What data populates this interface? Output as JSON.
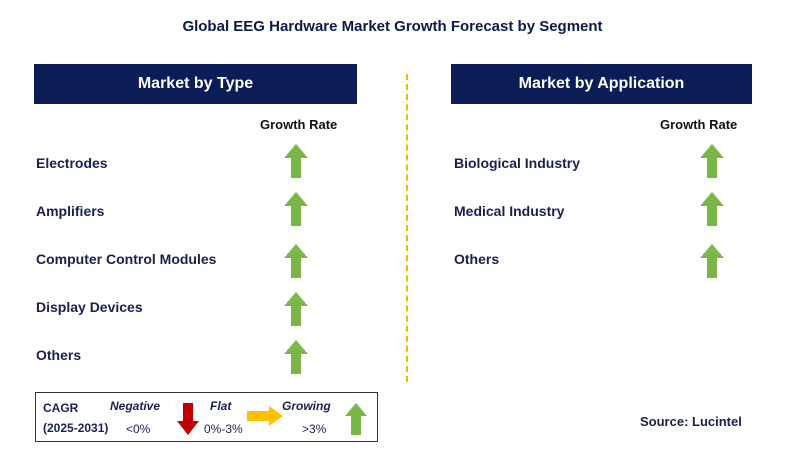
{
  "title": "Global EEG Hardware Market Growth Forecast by Segment",
  "left_panel": {
    "header": "Market by Type",
    "growth_label": "Growth Rate",
    "rows": [
      {
        "label": "Electrodes",
        "trend": "growing"
      },
      {
        "label": "Amplifiers",
        "trend": "growing"
      },
      {
        "label": "Computer Control Modules",
        "trend": "growing"
      },
      {
        "label": "Display Devices",
        "trend": "growing"
      },
      {
        "label": "Others",
        "trend": "growing"
      }
    ]
  },
  "right_panel": {
    "header": "Market by Application",
    "growth_label": "Growth Rate",
    "rows": [
      {
        "label": "Biological Industry",
        "trend": "growing"
      },
      {
        "label": "Medical Industry",
        "trend": "growing"
      },
      {
        "label": "Others",
        "trend": "growing"
      }
    ]
  },
  "legend": {
    "cagr_label": "CAGR",
    "period": "(2025-2031)",
    "negative": {
      "label": "Negative",
      "range": "<0%",
      "icon": "down-arrow-icon"
    },
    "flat": {
      "label": "Flat",
      "range": "0%-3%",
      "icon": "right-arrow-icon"
    },
    "growing": {
      "label": "Growing",
      "range": ">3%",
      "icon": "up-arrow-icon"
    }
  },
  "source": "Source: Lucintel",
  "colors": {
    "header_bg": "#0b1c56",
    "growing": "#7ab648",
    "negative": "#c00000",
    "flat": "#ffc000",
    "divider": "#f5b800"
  }
}
